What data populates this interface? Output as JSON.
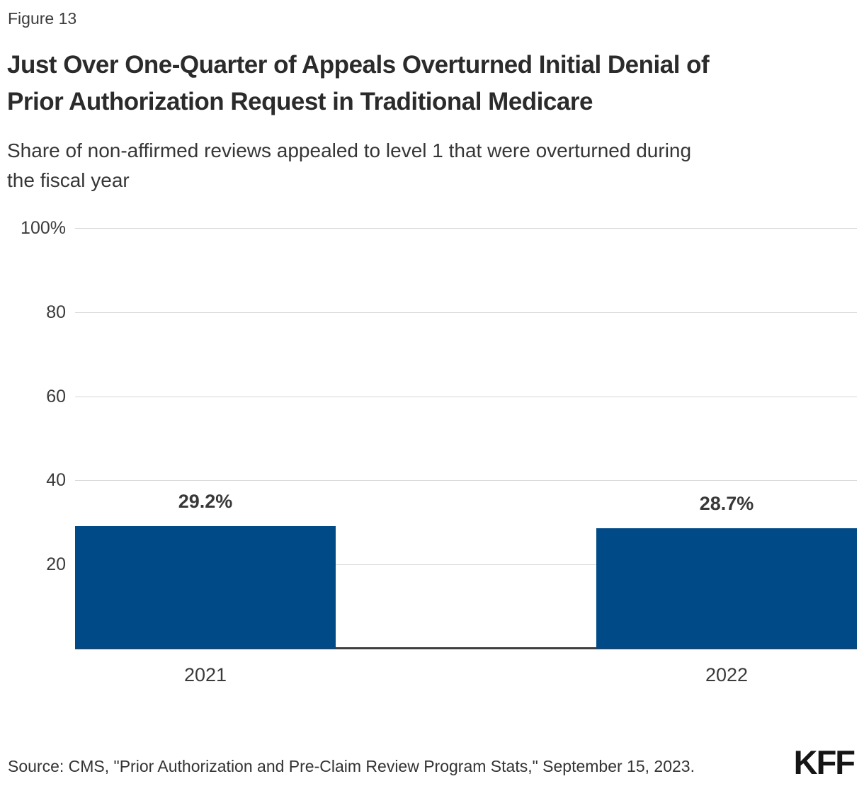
{
  "figure_label": "Figure 13",
  "header": {
    "title_lines": [
      "Just Over One-Quarter of Appeals Overturned Initial Denial of",
      "Prior Authorization Request in Traditional Medicare"
    ],
    "subtitle_lines": [
      "Share of non-affirmed reviews appealed to level 1 that were overturned during",
      "the fiscal year"
    ]
  },
  "footer": {
    "source": "Source: CMS, \"Prior Authorization and Pre-Claim Review Program Stats,\" September 15, 2023.",
    "logo": "KFF"
  },
  "colors": {
    "bar": "#004a87",
    "grid": "#d8d8d8",
    "axis": "#3f3f3f",
    "value_label": "#383838"
  },
  "chart_data": {
    "type": "bar",
    "title": "Just Over One-Quarter of Appeals Overturned Initial Denial of Prior Authorization Request in Traditional Medicare",
    "subtitle": "Share of non-affirmed reviews appealed to level 1 that were overturned during the fiscal year",
    "categories": [
      "2021",
      "2022"
    ],
    "values": [
      29.2,
      28.7
    ],
    "value_labels": [
      "29.2%",
      "28.7%"
    ],
    "xlabel": "",
    "ylabel": "",
    "ylim": [
      0,
      100
    ],
    "yticks": [
      20,
      40,
      60,
      80,
      100
    ],
    "ytick_labels": [
      "20",
      "40",
      "60",
      "80",
      "100%"
    ],
    "grid": true,
    "legend": false,
    "bar_color": "#004a87"
  }
}
